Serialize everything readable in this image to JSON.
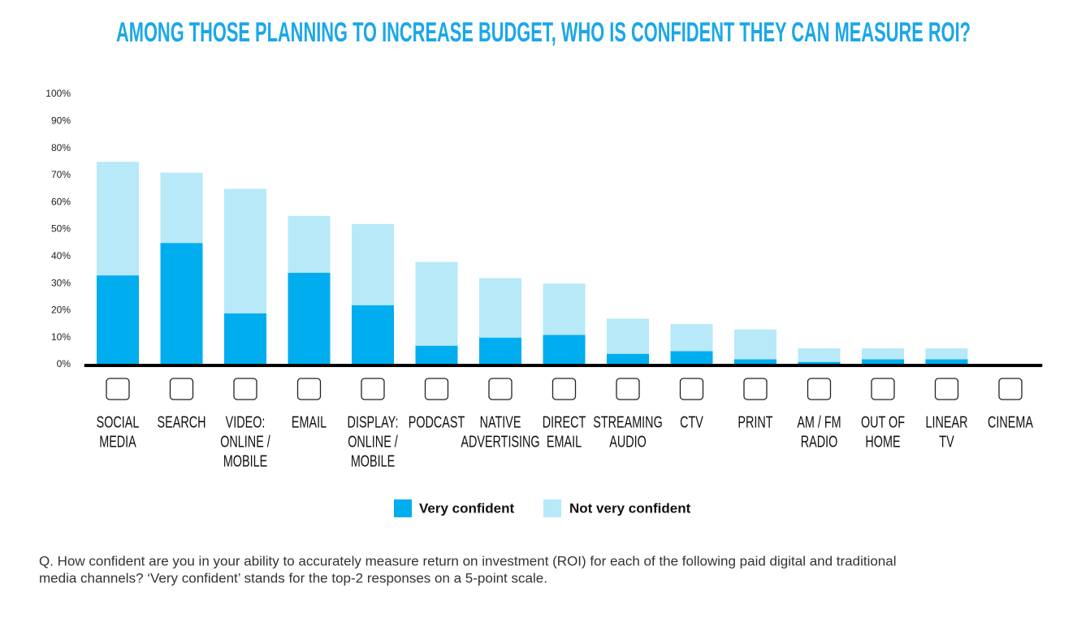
{
  "chart_data": {
    "type": "stacked_bar",
    "title": "AMONG THOSE PLANNING TO INCREASE BUDGET, WHO IS CONFIDENT THEY CAN MEASURE ROI?",
    "categories": [
      [
        "SOCIAL",
        "MEDIA"
      ],
      [
        "SEARCH"
      ],
      [
        "VIDEO:",
        "ONLINE /",
        "MOBILE"
      ],
      [
        "EMAIL"
      ],
      [
        "DISPLAY:",
        "ONLINE /",
        "MOBILE"
      ],
      [
        "PODCAST"
      ],
      [
        "NATIVE",
        "ADVERTISING"
      ],
      [
        "DIRECT",
        "EMAIL"
      ],
      [
        "STREAMING",
        "AUDIO"
      ],
      [
        "CTV"
      ],
      [
        "PRINT"
      ],
      [
        "AM / FM",
        "RADIO"
      ],
      [
        "OUT OF",
        "HOME"
      ],
      [
        "LINEAR",
        "TV"
      ],
      [
        "CINEMA"
      ]
    ],
    "series": [
      {
        "name": "Very confident",
        "color": "#00adef",
        "values": [
          33,
          45,
          19,
          34,
          22,
          7,
          10,
          11,
          4,
          5,
          2,
          1,
          2,
          2,
          0
        ]
      },
      {
        "name": "Not very confident",
        "color": "#b7e9f8",
        "values": [
          42,
          26,
          46,
          21,
          30,
          31,
          22,
          19,
          13,
          10,
          11,
          5,
          4,
          4,
          0
        ]
      }
    ],
    "ylim": [
      0,
      100
    ],
    "yticks": [
      {
        "value": 0,
        "label": "0%"
      },
      {
        "value": 10,
        "label": "10%"
      },
      {
        "value": 20,
        "label": "20%"
      },
      {
        "value": 30,
        "label": "30%"
      },
      {
        "value": 40,
        "label": "40%"
      },
      {
        "value": 50,
        "label": "50%"
      },
      {
        "value": 60,
        "label": "60%"
      },
      {
        "value": 70,
        "label": "70%"
      },
      {
        "value": 80,
        "label": "80%"
      },
      {
        "value": 90,
        "label": "90%"
      },
      {
        "value": 100,
        "label": "100%"
      }
    ],
    "note": [
      "Q. How confident are you in your ability to accurately measure return on investment (ROI) for each of the following paid digital and traditional",
      "media channels? ‘Very confident’ stands for the top-2 responses on a 5-point scale."
    ]
  }
}
